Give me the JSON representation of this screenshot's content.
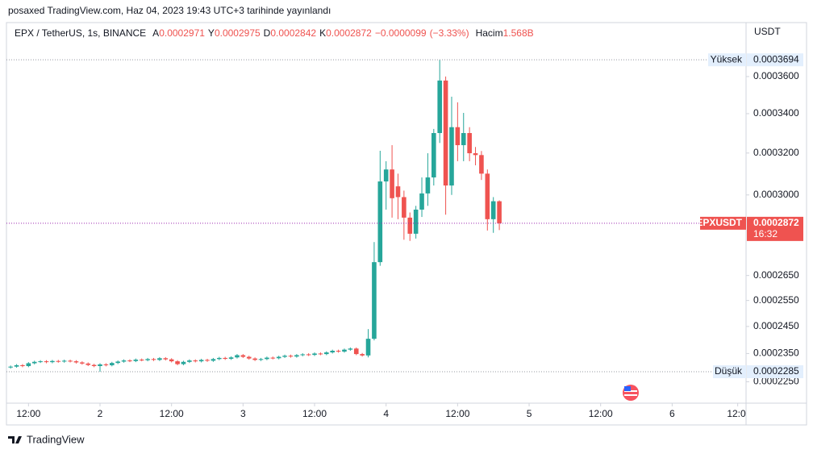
{
  "header": "posaxed TradingView.com, Haz 04, 2023 19:43 UTC+3 tarihinde yayınlandı",
  "footer": "TradingView",
  "chart_data": {
    "type": "candlestick",
    "symbol": "EPX / TetherUS, 1s, BINANCE",
    "ohlc_labels": {
      "open": "A",
      "high": "Y",
      "low": "D",
      "close": "K"
    },
    "change": {
      "value": -9.9e-06,
      "label": "−0.0000099"
    },
    "change_pct": {
      "value": -3.33,
      "label": "(−3.33%)"
    },
    "volume_label": "Hacim",
    "volume": {
      "value": 1568000000,
      "label": "1.568B"
    },
    "currency": "USDT",
    "high_label": "Yüksek",
    "low_label": "Düşük",
    "countdown": "16:32",
    "log_scale": true,
    "grid": false,
    "xlim": [
      0.3,
      124.4
    ],
    "xticks": [
      {
        "value": 4,
        "label": "12:00"
      },
      {
        "value": 16,
        "label": "2"
      },
      {
        "value": 28,
        "label": "12:00"
      },
      {
        "value": 40,
        "label": "3"
      },
      {
        "value": 52,
        "label": "12:00"
      },
      {
        "value": 64,
        "label": "4"
      },
      {
        "value": 76,
        "label": "12:00"
      },
      {
        "value": 88,
        "label": "5"
      },
      {
        "value": 100,
        "label": "12:00"
      },
      {
        "value": 112,
        "label": "6"
      },
      {
        "value": 123,
        "label": "12:0"
      }
    ],
    "ylim": [
      0.0002177,
      0.0003912
    ],
    "yticks": [
      {
        "value": 0.00036,
        "label": "0.0003600"
      },
      {
        "value": 0.00034,
        "label": "0.0003400"
      },
      {
        "value": 0.00032,
        "label": "0.0003200"
      },
      {
        "value": 0.0003,
        "label": "0.0003000"
      },
      {
        "value": 0.000265,
        "label": "0.0002650"
      },
      {
        "value": 0.000255,
        "label": "0.0002550"
      },
      {
        "value": 0.000245,
        "label": "0.0002450"
      },
      {
        "value": 0.000235,
        "label": "0.0002350"
      },
      {
        "value": 0.000225,
        "label": "0.0002250"
      }
    ],
    "series": [
      {
        "name": "EPXUSDT",
        "up_color": "#26a69a",
        "down_color": "#ef5350",
        "x": [
          1,
          2,
          3,
          4,
          5,
          6,
          7,
          8,
          9,
          10,
          11,
          12,
          13,
          14,
          15,
          16,
          17,
          18,
          19,
          20,
          21,
          22,
          23,
          24,
          25,
          26,
          27,
          28,
          29,
          30,
          31,
          32,
          33,
          34,
          35,
          36,
          37,
          38,
          39,
          40,
          41,
          42,
          43,
          44,
          45,
          46,
          47,
          48,
          49,
          50,
          51,
          52,
          53,
          54,
          55,
          56,
          57,
          58,
          59,
          60,
          61,
          62,
          63,
          64,
          65,
          66,
          67,
          68,
          69,
          70,
          71,
          72,
          73,
          74,
          75,
          76,
          77,
          78,
          79,
          80,
          81,
          82,
          83
        ],
        "open": [
          0.00023,
          0.0002303,
          0.0002308,
          0.0002305,
          0.0002315,
          0.000232,
          0.0002322,
          0.0002319,
          0.0002323,
          0.0002321,
          0.0002324,
          0.0002322,
          0.0002318,
          0.0002314,
          0.0002309,
          0.0002305,
          0.0002311,
          0.0002308,
          0.0002316,
          0.0002321,
          0.0002325,
          0.0002323,
          0.0002328,
          0.0002326,
          0.000233,
          0.0002327,
          0.0002333,
          0.0002329,
          0.0002322,
          0.0002312,
          0.000232,
          0.0002325,
          0.0002322,
          0.0002327,
          0.0002324,
          0.000233,
          0.0002334,
          0.0002331,
          0.0002336,
          0.0002344,
          0.0002338,
          0.0002332,
          0.0002327,
          0.000233,
          0.0002335,
          0.0002333,
          0.0002338,
          0.0002342,
          0.0002339,
          0.0002344,
          0.0002347,
          0.0002345,
          0.000235,
          0.0002348,
          0.0002354,
          0.000236,
          0.0002357,
          0.0002364,
          0.0002368,
          0.0002348,
          0.0002343,
          0.0002404,
          0.0002705,
          0.0003063,
          0.000312,
          0.000304,
          0.000299,
          0.0002897,
          0.0002826,
          0.0002933,
          0.0003007,
          0.0003082,
          0.00033,
          0.0003578,
          0.0003044,
          0.000333,
          0.0003239,
          0.00033,
          0.0003199,
          0.000319,
          0.00031,
          0.000289,
          0.0002971
        ],
        "high": [
          0.0002307,
          0.0002312,
          0.0002312,
          0.0002319,
          0.0002324,
          0.0002326,
          0.0002326,
          0.0002327,
          0.0002327,
          0.0002328,
          0.0002328,
          0.0002326,
          0.0002322,
          0.0002318,
          0.0002313,
          0.0002315,
          0.0002315,
          0.000232,
          0.0002325,
          0.0002329,
          0.0002329,
          0.0002332,
          0.0002332,
          0.0002334,
          0.0002334,
          0.0002337,
          0.0002337,
          0.0002333,
          0.0002326,
          0.0002324,
          0.0002329,
          0.0002329,
          0.0002331,
          0.0002331,
          0.0002334,
          0.0002338,
          0.0002338,
          0.000234,
          0.0002348,
          0.0002348,
          0.0002342,
          0.0002336,
          0.0002334,
          0.0002339,
          0.0002339,
          0.0002342,
          0.0002346,
          0.0002346,
          0.0002348,
          0.0002351,
          0.0002351,
          0.0002354,
          0.0002354,
          0.0002358,
          0.0002364,
          0.0002364,
          0.0002368,
          0.0002372,
          0.0002372,
          0.0002352,
          0.000244,
          0.000279,
          0.0003211,
          0.000316,
          0.0003239,
          0.00031,
          0.000302,
          0.000292,
          0.000295,
          0.0003082,
          0.0003199,
          0.0003321,
          0.0003694,
          0.00036,
          0.000349,
          0.000346,
          0.0003404,
          0.000333,
          0.000323,
          0.000321,
          0.000312,
          0.000299,
          0.0002975
        ],
        "low": [
          0.0002296,
          0.0002299,
          0.0002301,
          0.0002301,
          0.0002311,
          0.0002316,
          0.0002315,
          0.0002315,
          0.0002317,
          0.0002317,
          0.0002318,
          0.0002314,
          0.000231,
          0.0002305,
          0.0002301,
          0.0002285,
          0.0002304,
          0.0002304,
          0.0002312,
          0.0002317,
          0.0002319,
          0.0002319,
          0.0002322,
          0.0002322,
          0.0002323,
          0.0002323,
          0.0002325,
          0.0002318,
          0.0002308,
          0.0002308,
          0.0002316,
          0.0002318,
          0.0002318,
          0.000232,
          0.000232,
          0.0002326,
          0.0002327,
          0.0002327,
          0.0002332,
          0.0002334,
          0.0002328,
          0.0002323,
          0.0002323,
          0.0002326,
          0.0002329,
          0.0002329,
          0.0002334,
          0.0002335,
          0.0002335,
          0.000234,
          0.0002341,
          0.0002341,
          0.0002344,
          0.0002344,
          0.000235,
          0.0002353,
          0.0002353,
          0.000236,
          0.0002344,
          0.0002339,
          0.0002336,
          0.0002398,
          0.000269,
          0.0002933,
          0.0002897,
          0.000289,
          0.00028,
          0.0002795,
          0.0002805,
          0.00029,
          0.000295,
          0.0003044,
          0.000325,
          0.000291,
          0.0003,
          0.000316,
          0.000316,
          0.000316,
          0.000314,
          0.000307,
          0.000284,
          0.000283,
          0.0002842
        ],
        "close": [
          0.0002303,
          0.0002308,
          0.0002305,
          0.0002315,
          0.000232,
          0.0002322,
          0.0002319,
          0.0002323,
          0.0002321,
          0.0002324,
          0.0002322,
          0.0002318,
          0.0002314,
          0.0002309,
          0.0002305,
          0.0002311,
          0.0002308,
          0.0002316,
          0.0002321,
          0.0002325,
          0.0002323,
          0.0002328,
          0.0002326,
          0.000233,
          0.0002327,
          0.0002333,
          0.0002329,
          0.0002322,
          0.0002312,
          0.000232,
          0.0002325,
          0.0002322,
          0.0002327,
          0.0002324,
          0.000233,
          0.0002334,
          0.0002331,
          0.0002336,
          0.0002344,
          0.0002338,
          0.0002332,
          0.0002327,
          0.000233,
          0.0002335,
          0.0002333,
          0.0002338,
          0.0002342,
          0.0002339,
          0.0002344,
          0.0002347,
          0.0002345,
          0.000235,
          0.0002348,
          0.0002354,
          0.000236,
          0.0002357,
          0.0002364,
          0.0002368,
          0.0002348,
          0.0002343,
          0.0002404,
          0.0002705,
          0.0003063,
          0.000312,
          0.0002985,
          0.000299,
          0.0002897,
          0.0002826,
          0.0002933,
          0.0003007,
          0.0003082,
          0.00033,
          0.0003578,
          0.0003044,
          0.000333,
          0.0003239,
          0.00033,
          0.0003199,
          0.000319,
          0.00031,
          0.000289,
          0.0002971,
          0.0002872
        ]
      }
    ]
  }
}
